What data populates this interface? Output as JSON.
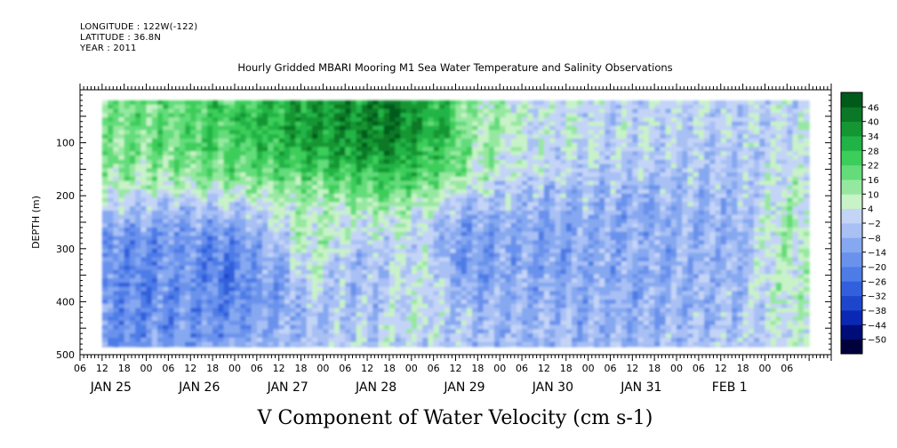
{
  "header": {
    "longitude": "LONGITUDE : 122W(-122)",
    "latitude": "LATITUDE : 36.8N",
    "year": "YEAR : 2011"
  },
  "chart_data": {
    "type": "heatmap",
    "title": "Hourly Gridded MBARI Mooring M1 Sea Water Temperature and Salinity Observations",
    "caption": "V Component of Water Velocity (cm s-1)",
    "ylabel": "DEPTH (m)",
    "xlabel": "",
    "yrange": [
      0,
      500
    ],
    "y_inverted": true,
    "data_depth_range": [
      20,
      485
    ],
    "yticks": [
      100,
      200,
      300,
      400,
      500
    ],
    "xrange_hours": [
      0,
      204
    ],
    "data_x_range_hours": [
      6,
      198
    ],
    "hour_labels": [
      "06",
      "12",
      "18",
      "00",
      "06",
      "12",
      "18",
      "00",
      "06",
      "12",
      "18",
      "00",
      "06",
      "12",
      "18",
      "00",
      "06",
      "12",
      "18",
      "00",
      "06",
      "12",
      "18",
      "00",
      "06",
      "12",
      "18",
      "00",
      "06",
      "12",
      "18",
      "00",
      "06"
    ],
    "day_labels": [
      {
        "label": "JAN 25",
        "hour": 6
      },
      {
        "label": "JAN 26",
        "hour": 30
      },
      {
        "label": "JAN 27",
        "hour": 54
      },
      {
        "label": "JAN 28",
        "hour": 78
      },
      {
        "label": "JAN 29",
        "hour": 102
      },
      {
        "label": "JAN 30",
        "hour": 126
      },
      {
        "label": "JAN 31",
        "hour": 150
      },
      {
        "label": "FEB  1",
        "hour": 174
      }
    ],
    "colorbar": {
      "levels": [
        -50,
        -44,
        -38,
        -32,
        -26,
        -20,
        -14,
        -8,
        -2,
        4,
        10,
        16,
        22,
        28,
        34,
        40,
        46
      ],
      "colors": [
        "#00003c",
        "#000c78",
        "#0a28b4",
        "#1e46cd",
        "#3260dc",
        "#4e7ce6",
        "#6a92ec",
        "#86a8f0",
        "#a8c0f4",
        "#c4d4f6",
        "#c8f2c8",
        "#96e8a0",
        "#64dc7a",
        "#3ccd5a",
        "#20b446",
        "#149632",
        "#0a7826",
        "#005a1a"
      ]
    },
    "field_summary": {
      "surface_layer": "strong positive (northward) flow, about +20 to +46 cm/s, 20-120 m, from JAN 25 through the morning of JAN 29",
      "deep_layer": "negative (southward) flow, about -2 to -26 cm/s, below ~150 m for most of the period",
      "late_period": "mostly negative from JAN 29 to FEB 1 with scattered weak positive patches",
      "cells": [
        {
          "t": 6,
          "d": 50,
          "v": 12
        },
        {
          "t": 12,
          "d": 50,
          "v": 18
        },
        {
          "t": 24,
          "d": 50,
          "v": 20
        },
        {
          "t": 36,
          "d": 50,
          "v": 24
        },
        {
          "t": 48,
          "d": 50,
          "v": 28
        },
        {
          "t": 60,
          "d": 40,
          "v": 36
        },
        {
          "t": 72,
          "d": 40,
          "v": 38
        },
        {
          "t": 84,
          "d": 40,
          "v": 44
        },
        {
          "t": 96,
          "d": 50,
          "v": 30
        },
        {
          "t": 108,
          "d": 40,
          "v": 10
        },
        {
          "t": 126,
          "d": 40,
          "v": 2
        },
        {
          "t": 150,
          "d": 40,
          "v": 0
        },
        {
          "t": 15,
          "d": 350,
          "v": -20
        },
        {
          "t": 27,
          "d": 320,
          "v": -16
        },
        {
          "t": 39,
          "d": 340,
          "v": -22
        },
        {
          "t": 51,
          "d": 350,
          "v": -12
        },
        {
          "t": 63,
          "d": 280,
          "v": 8
        },
        {
          "t": 75,
          "d": 350,
          "v": -6
        },
        {
          "t": 90,
          "d": 360,
          "v": 4
        },
        {
          "t": 105,
          "d": 300,
          "v": -14
        },
        {
          "t": 126,
          "d": 300,
          "v": -12
        },
        {
          "t": 150,
          "d": 300,
          "v": -10
        },
        {
          "t": 174,
          "d": 300,
          "v": -8
        },
        {
          "t": 192,
          "d": 300,
          "v": 8
        }
      ]
    }
  }
}
